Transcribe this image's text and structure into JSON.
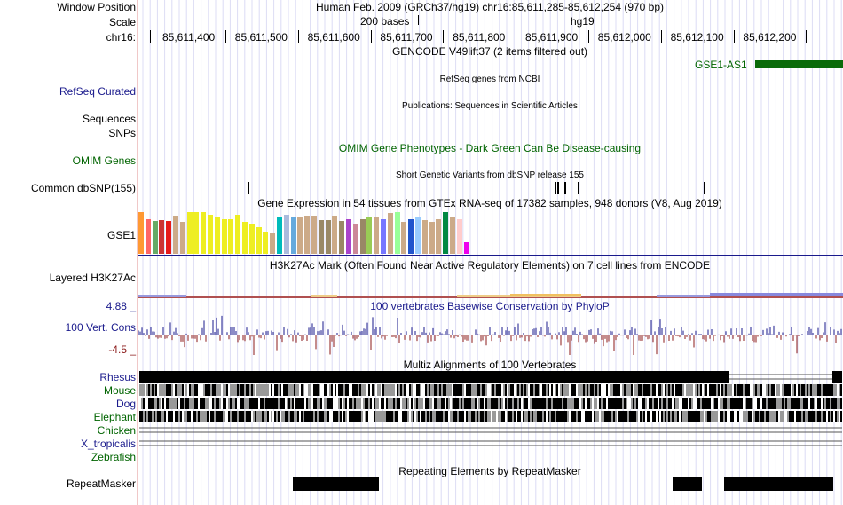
{
  "header": {
    "window_position_label": "Window Position",
    "window_position_text": "Human Feb. 2009 (GRCh37/hg19)   chr16:85,611,285-85,612,254 (970 bp)",
    "scale_label": "Scale",
    "scale_text": "200 bases",
    "assembly": "hg19",
    "chrom_label": "chr16:",
    "ticks": [
      "85,611,400",
      "85,611,500",
      "85,611,600",
      "85,611,700",
      "85,611,800",
      "85,611,900",
      "85,612,000",
      "85,612,100",
      "85,612,200"
    ]
  },
  "tracks": {
    "gencode_title": "GENCODE V49lift37 (2 items filtered out)",
    "gencode_gene": "GSE1-AS1",
    "refseq_label": "RefSeq Curated",
    "refseq_title": "RefSeq genes from NCBI",
    "publications_title": "Publications: Sequences in Scientific Articles",
    "sequences_label": "Sequences",
    "snps_label": "SNPs",
    "omim_title": "OMIM Gene Phenotypes - Dark Green Can Be Disease-causing",
    "omim_label": "OMIM Genes",
    "dbsnp_title": "Short Genetic Variants from dbSNP release 155",
    "dbsnp_label": "Common dbSNP(155)",
    "gtex_title": "Gene Expression in 54 tissues from GTEx RNA-seq of 17382 samples, 948 donors (V8, Aug 2019)",
    "gtex_label": "GSE1",
    "h3k27ac_title": "H3K27Ac Mark (Often Found Near Active Regulatory Elements) on 7 cell lines from ENCODE",
    "h3k27ac_label": "Layered H3K27Ac",
    "cons_max": "4.88 _",
    "cons_title": "100 vertebrates Basewise Conservation by PhyloP",
    "cons_label": "100 Vert. Cons",
    "cons_min": "-4.5 _",
    "multiz_title": "Multiz Alignments of 100 Vertebrates",
    "species": [
      "Rhesus",
      "Mouse",
      "Dog",
      "Elephant",
      "Chicken",
      "X_tropicalis",
      "Zebrafish"
    ],
    "rmsk_title": "Repeating Elements by RepeatMasker",
    "rmsk_label": "RepeatMasker"
  },
  "gtex_colors": [
    "#ff9933",
    "#ff6666",
    "#66aa66",
    "#cc3333",
    "#e61a1a",
    "#ccaa88",
    "#ccaa88",
    "#eeee22",
    "#eeee22",
    "#eeee22",
    "#eeee22",
    "#eeee22",
    "#eeee22",
    "#eeee22",
    "#eeee22",
    "#eeee22",
    "#eeee22",
    "#eeee22",
    "#eeee22",
    "#ccaa88",
    "#00bbbb",
    "#aabbdd",
    "#66aadd",
    "#ccaa88",
    "#ccaa88",
    "#ccaa88",
    "#998866",
    "#998866",
    "#ccaa88",
    "#998866",
    "#aa44cc",
    "#cc8899",
    "#998866",
    "#99cc55",
    "#ccaa88",
    "#7777ff",
    "#ccaa88",
    "#99ff99",
    "#ccaa88",
    "#2255cc",
    "#99ccff",
    "#ccaa88",
    "#ccaa88",
    "#ccaa88",
    "#008844",
    "#ccaa88",
    "#ffcccc",
    "#ee00ee"
  ],
  "gtex_heights": [
    0.98,
    0.82,
    0.77,
    0.8,
    0.78,
    0.9,
    0.75,
    0.98,
    0.98,
    0.98,
    0.92,
    0.88,
    0.82,
    0.82,
    0.92,
    0.75,
    0.7,
    0.62,
    0.52,
    0.5,
    0.88,
    0.92,
    0.88,
    0.88,
    0.9,
    0.9,
    0.8,
    0.8,
    0.9,
    0.78,
    0.82,
    0.7,
    0.82,
    0.88,
    0.88,
    0.82,
    0.96,
    0.98,
    0.75,
    0.82,
    0.86,
    0.8,
    0.76,
    0.82,
    0.98,
    0.86,
    0.82,
    0.28
  ],
  "colors": {
    "blue": "#1a1a8c",
    "green": "#006400",
    "maroon": "#8b1a1a",
    "gencode_bar": "#0a6b0a"
  }
}
